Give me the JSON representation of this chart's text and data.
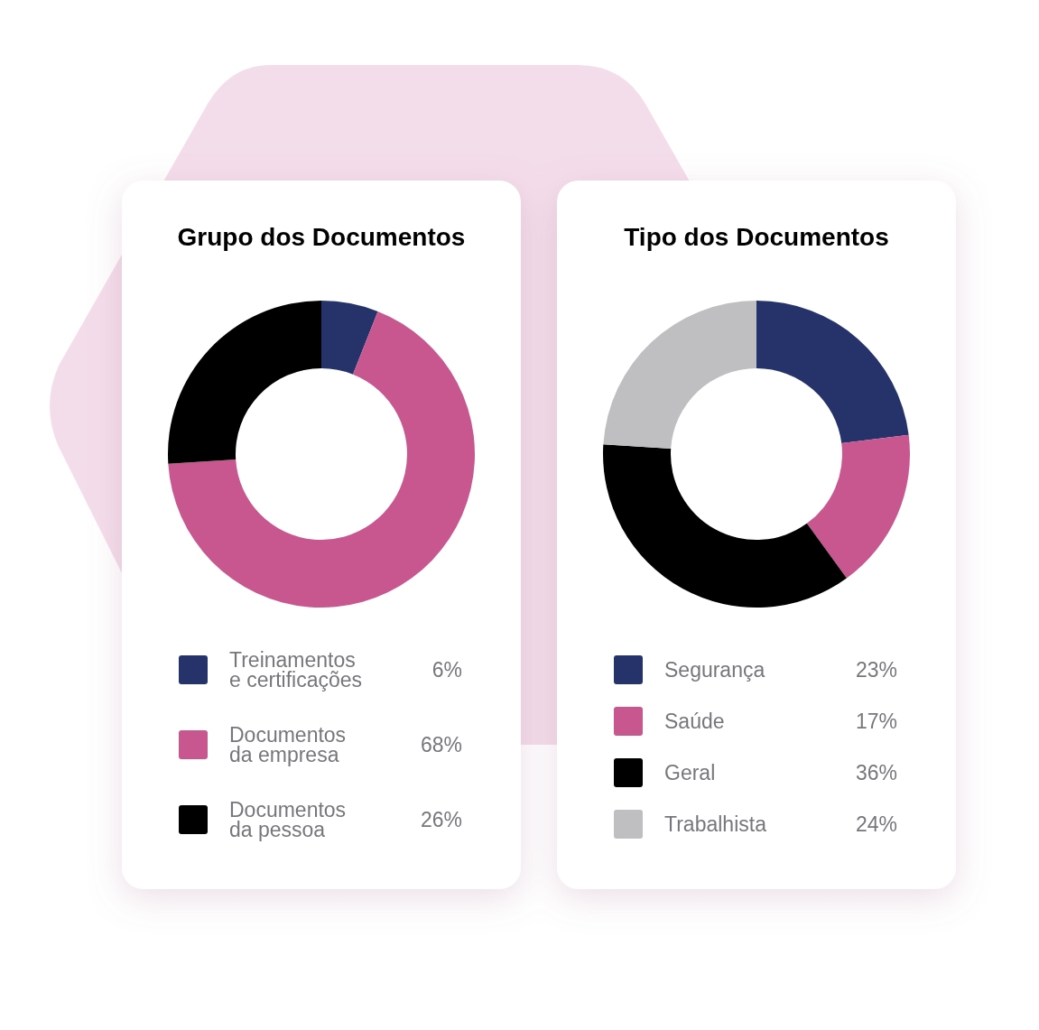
{
  "chart_data": [
    {
      "type": "donut",
      "title": "Grupo dos Documentos",
      "categories": [
        "Treinamentos e certificações",
        "Documentos da empresa",
        "Documentos da pessoa"
      ],
      "values": [
        6,
        68,
        26
      ],
      "colors": [
        "#27336b",
        "#c8568f",
        "#000000"
      ],
      "value_labels": [
        "6%",
        "68%",
        "26%"
      ],
      "legend": "bottom"
    },
    {
      "type": "donut",
      "title": "Tipo dos Documentos",
      "categories": [
        "Segurança",
        "Saúde",
        "Geral",
        "Trabalhista"
      ],
      "values": [
        23,
        17,
        36,
        24
      ],
      "colors": [
        "#27336b",
        "#c8568f",
        "#000000",
        "#bfbfc1"
      ],
      "value_labels": [
        "23%",
        "17%",
        "36%",
        "24%"
      ],
      "legend": "bottom"
    }
  ]
}
